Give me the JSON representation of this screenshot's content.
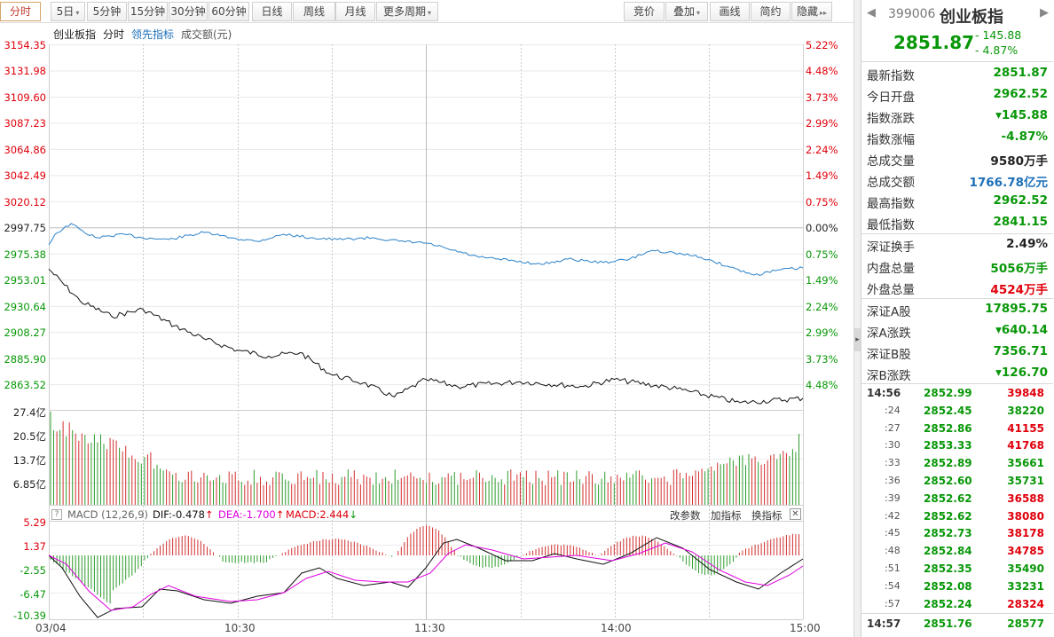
{
  "toolbar": {
    "left_tabs": [
      "分时",
      "5日",
      "5分钟",
      "15分钟",
      "30分钟",
      "60分钟",
      "日线",
      "周线",
      "月线",
      "更多周期"
    ],
    "right_tabs": [
      "竞价",
      "叠加",
      "画线",
      "简约",
      "隐藏"
    ]
  },
  "chart_header": {
    "name": "创业板指",
    "period": "分时",
    "leading": "领先指标",
    "volume": "成交额(元)"
  },
  "colors": {
    "up": "#e0000b",
    "down": "#089708",
    "index_line": "#111111",
    "leading_line": "#2b82c9",
    "dea": "#e000e0"
  },
  "price_axis": {
    "left": [
      "3154.35",
      "3131.98",
      "3109.60",
      "3087.23",
      "3064.86",
      "3042.49",
      "3020.12",
      "2997.75",
      "2975.38",
      "2953.01",
      "2930.64",
      "2908.27",
      "2885.90",
      "2863.52"
    ],
    "right": [
      "5.22%",
      "4.48%",
      "3.73%",
      "2.99%",
      "2.24%",
      "1.49%",
      "0.75%",
      "0.00%",
      "0.75%",
      "1.49%",
      "2.24%",
      "2.99%",
      "3.73%",
      "4.48%"
    ]
  },
  "volume_axis": [
    "27.4亿",
    "20.5亿",
    "13.7亿",
    "6.85亿"
  ],
  "macd": {
    "title": "MACD (12,26,9)",
    "dif": "DIF:-0.478",
    "dea": "DEA:-1.700",
    "macd": "MACD:2.444",
    "axis": [
      "5.29",
      "1.37",
      "-2.55",
      "-6.47",
      "-10.39"
    ],
    "actions": [
      "改参数",
      "加指标",
      "换指标"
    ]
  },
  "x_axis": [
    "03/04",
    "10:30",
    "11:30",
    "14:00",
    "15:00"
  ],
  "quote": {
    "code": "399006",
    "name": "创业板指",
    "price": "2851.87",
    "change": "- 145.88",
    "change_pct": "- 4.87%",
    "rows": [
      {
        "label": "最新指数",
        "value": "2851.87",
        "color": "green"
      },
      {
        "label": "今日开盘",
        "value": "2962.52",
        "color": "green"
      },
      {
        "label": "指数涨跌",
        "value": "▾145.88",
        "color": "green"
      },
      {
        "label": "指数涨幅",
        "value": "-4.87%",
        "color": "green"
      },
      {
        "label": "总成交量",
        "value": "9580万手",
        "color": "dark"
      },
      {
        "label": "总成交额",
        "value": "1766.78亿元",
        "color": "blue"
      },
      {
        "label": "最高指数",
        "value": "2962.52",
        "color": "green"
      },
      {
        "label": "最低指数",
        "value": "2841.15",
        "color": "green"
      },
      {
        "label": "深证换手",
        "value": "2.49%",
        "color": "dark"
      },
      {
        "label": "内盘总量",
        "value": "5056万手",
        "color": "green"
      },
      {
        "label": "外盘总量",
        "value": "4524万手",
        "color": "red"
      },
      {
        "label": "深证A股",
        "value": "17895.75",
        "color": "green"
      },
      {
        "label": "深A涨跌",
        "value": "▾640.14",
        "color": "green"
      },
      {
        "label": "深证B股",
        "value": "7356.71",
        "color": "green"
      },
      {
        "label": "深B涨跌",
        "value": "▾126.70",
        "color": "green"
      }
    ]
  },
  "ticks": [
    {
      "time": "14:56",
      "price": "2852.99",
      "vol": "39848",
      "color": "red"
    },
    {
      "time": ":24",
      "price": "2852.45",
      "vol": "38220",
      "color": "green"
    },
    {
      "time": ":27",
      "price": "2852.86",
      "vol": "41155",
      "color": "red"
    },
    {
      "time": ":30",
      "price": "2853.33",
      "vol": "41768",
      "color": "red"
    },
    {
      "time": ":33",
      "price": "2852.89",
      "vol": "35661",
      "color": "green"
    },
    {
      "time": ":36",
      "price": "2852.60",
      "vol": "35731",
      "color": "green"
    },
    {
      "time": ":39",
      "price": "2852.62",
      "vol": "36588",
      "color": "red"
    },
    {
      "time": ":42",
      "price": "2852.62",
      "vol": "38080",
      "color": "red"
    },
    {
      "time": ":45",
      "price": "2852.73",
      "vol": "38178",
      "color": "red"
    },
    {
      "time": ":48",
      "price": "2852.84",
      "vol": "34785",
      "color": "red"
    },
    {
      "time": ":51",
      "price": "2852.35",
      "vol": "35490",
      "color": "green"
    },
    {
      "time": ":54",
      "price": "2852.08",
      "vol": "33231",
      "color": "green"
    },
    {
      "time": ":57",
      "price": "2852.24",
      "vol": "28324",
      "color": "red"
    },
    {
      "time": "14:57",
      "price": "2851.76",
      "vol": "28577",
      "color": "green"
    }
  ],
  "chart_data": {
    "type": "line",
    "x_labels": [
      "03/04",
      "10:30",
      "11:30",
      "14:00",
      "15:00"
    ],
    "index_series": [
      {
        "time": "09:30",
        "value": 2962.5
      },
      {
        "time": "09:40",
        "value": 2935.0
      },
      {
        "time": "09:50",
        "value": 2922.0
      },
      {
        "time": "10:00",
        "value": 2928.0
      },
      {
        "time": "10:10",
        "value": 2914.0
      },
      {
        "time": "10:20",
        "value": 2902.0
      },
      {
        "time": "10:30",
        "value": 2893.0
      },
      {
        "time": "10:40",
        "value": 2888.0
      },
      {
        "time": "10:50",
        "value": 2891.0
      },
      {
        "time": "11:00",
        "value": 2872.0
      },
      {
        "time": "11:10",
        "value": 2865.0
      },
      {
        "time": "11:20",
        "value": 2853.0
      },
      {
        "time": "11:30",
        "value": 2868.0
      },
      {
        "time": "13:10",
        "value": 2862.0
      },
      {
        "time": "13:30",
        "value": 2866.0
      },
      {
        "time": "13:50",
        "value": 2862.0
      },
      {
        "time": "14:00",
        "value": 2868.0
      },
      {
        "time": "14:20",
        "value": 2860.0
      },
      {
        "time": "14:40",
        "value": 2848.0
      },
      {
        "time": "15:00",
        "value": 2851.9
      }
    ],
    "ylim": [
      2863.52,
      3154.35
    ]
  }
}
